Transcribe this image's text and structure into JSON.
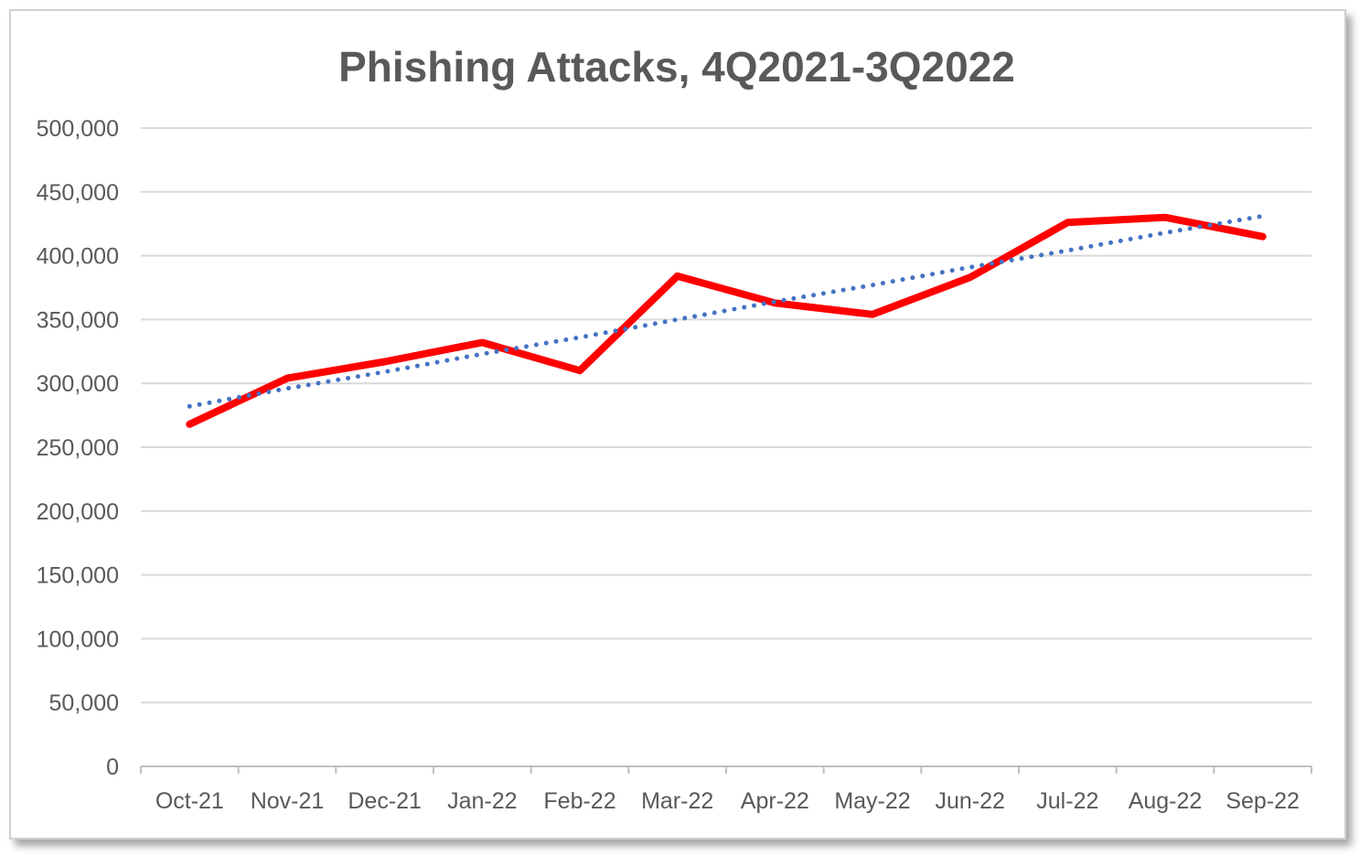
{
  "chart_data": {
    "type": "line",
    "title": "Phishing Attacks, 4Q2021-3Q2022",
    "xlabel": "",
    "ylabel": "",
    "categories": [
      "Oct-21",
      "Nov-21",
      "Dec-21",
      "Jan-22",
      "Feb-22",
      "Mar-22",
      "Apr-22",
      "May-22",
      "Jun-22",
      "Jul-22",
      "Aug-22",
      "Sep-22"
    ],
    "ylim": [
      0,
      500000
    ],
    "y_ticks": [
      0,
      50000,
      100000,
      150000,
      200000,
      250000,
      300000,
      350000,
      400000,
      450000,
      500000
    ],
    "y_tick_labels": [
      "0",
      "50,000",
      "100,000",
      "150,000",
      "200,000",
      "250,000",
      "300,000",
      "350,000",
      "400,000",
      "450,000",
      "500,000"
    ],
    "grid": true,
    "legend": "none",
    "series": [
      {
        "style": "solid",
        "color": "#ff0000",
        "values": [
          268000,
          304000,
          317000,
          332000,
          310000,
          384000,
          363000,
          354000,
          383000,
          426000,
          430000,
          415000
        ]
      },
      {
        "style": "dotted-trendline",
        "color": "#4472c4",
        "values": [
          282000,
          296000,
          309000,
          323000,
          336000,
          350000,
          364000,
          377000,
          391000,
          404000,
          418000,
          431000
        ]
      }
    ]
  }
}
